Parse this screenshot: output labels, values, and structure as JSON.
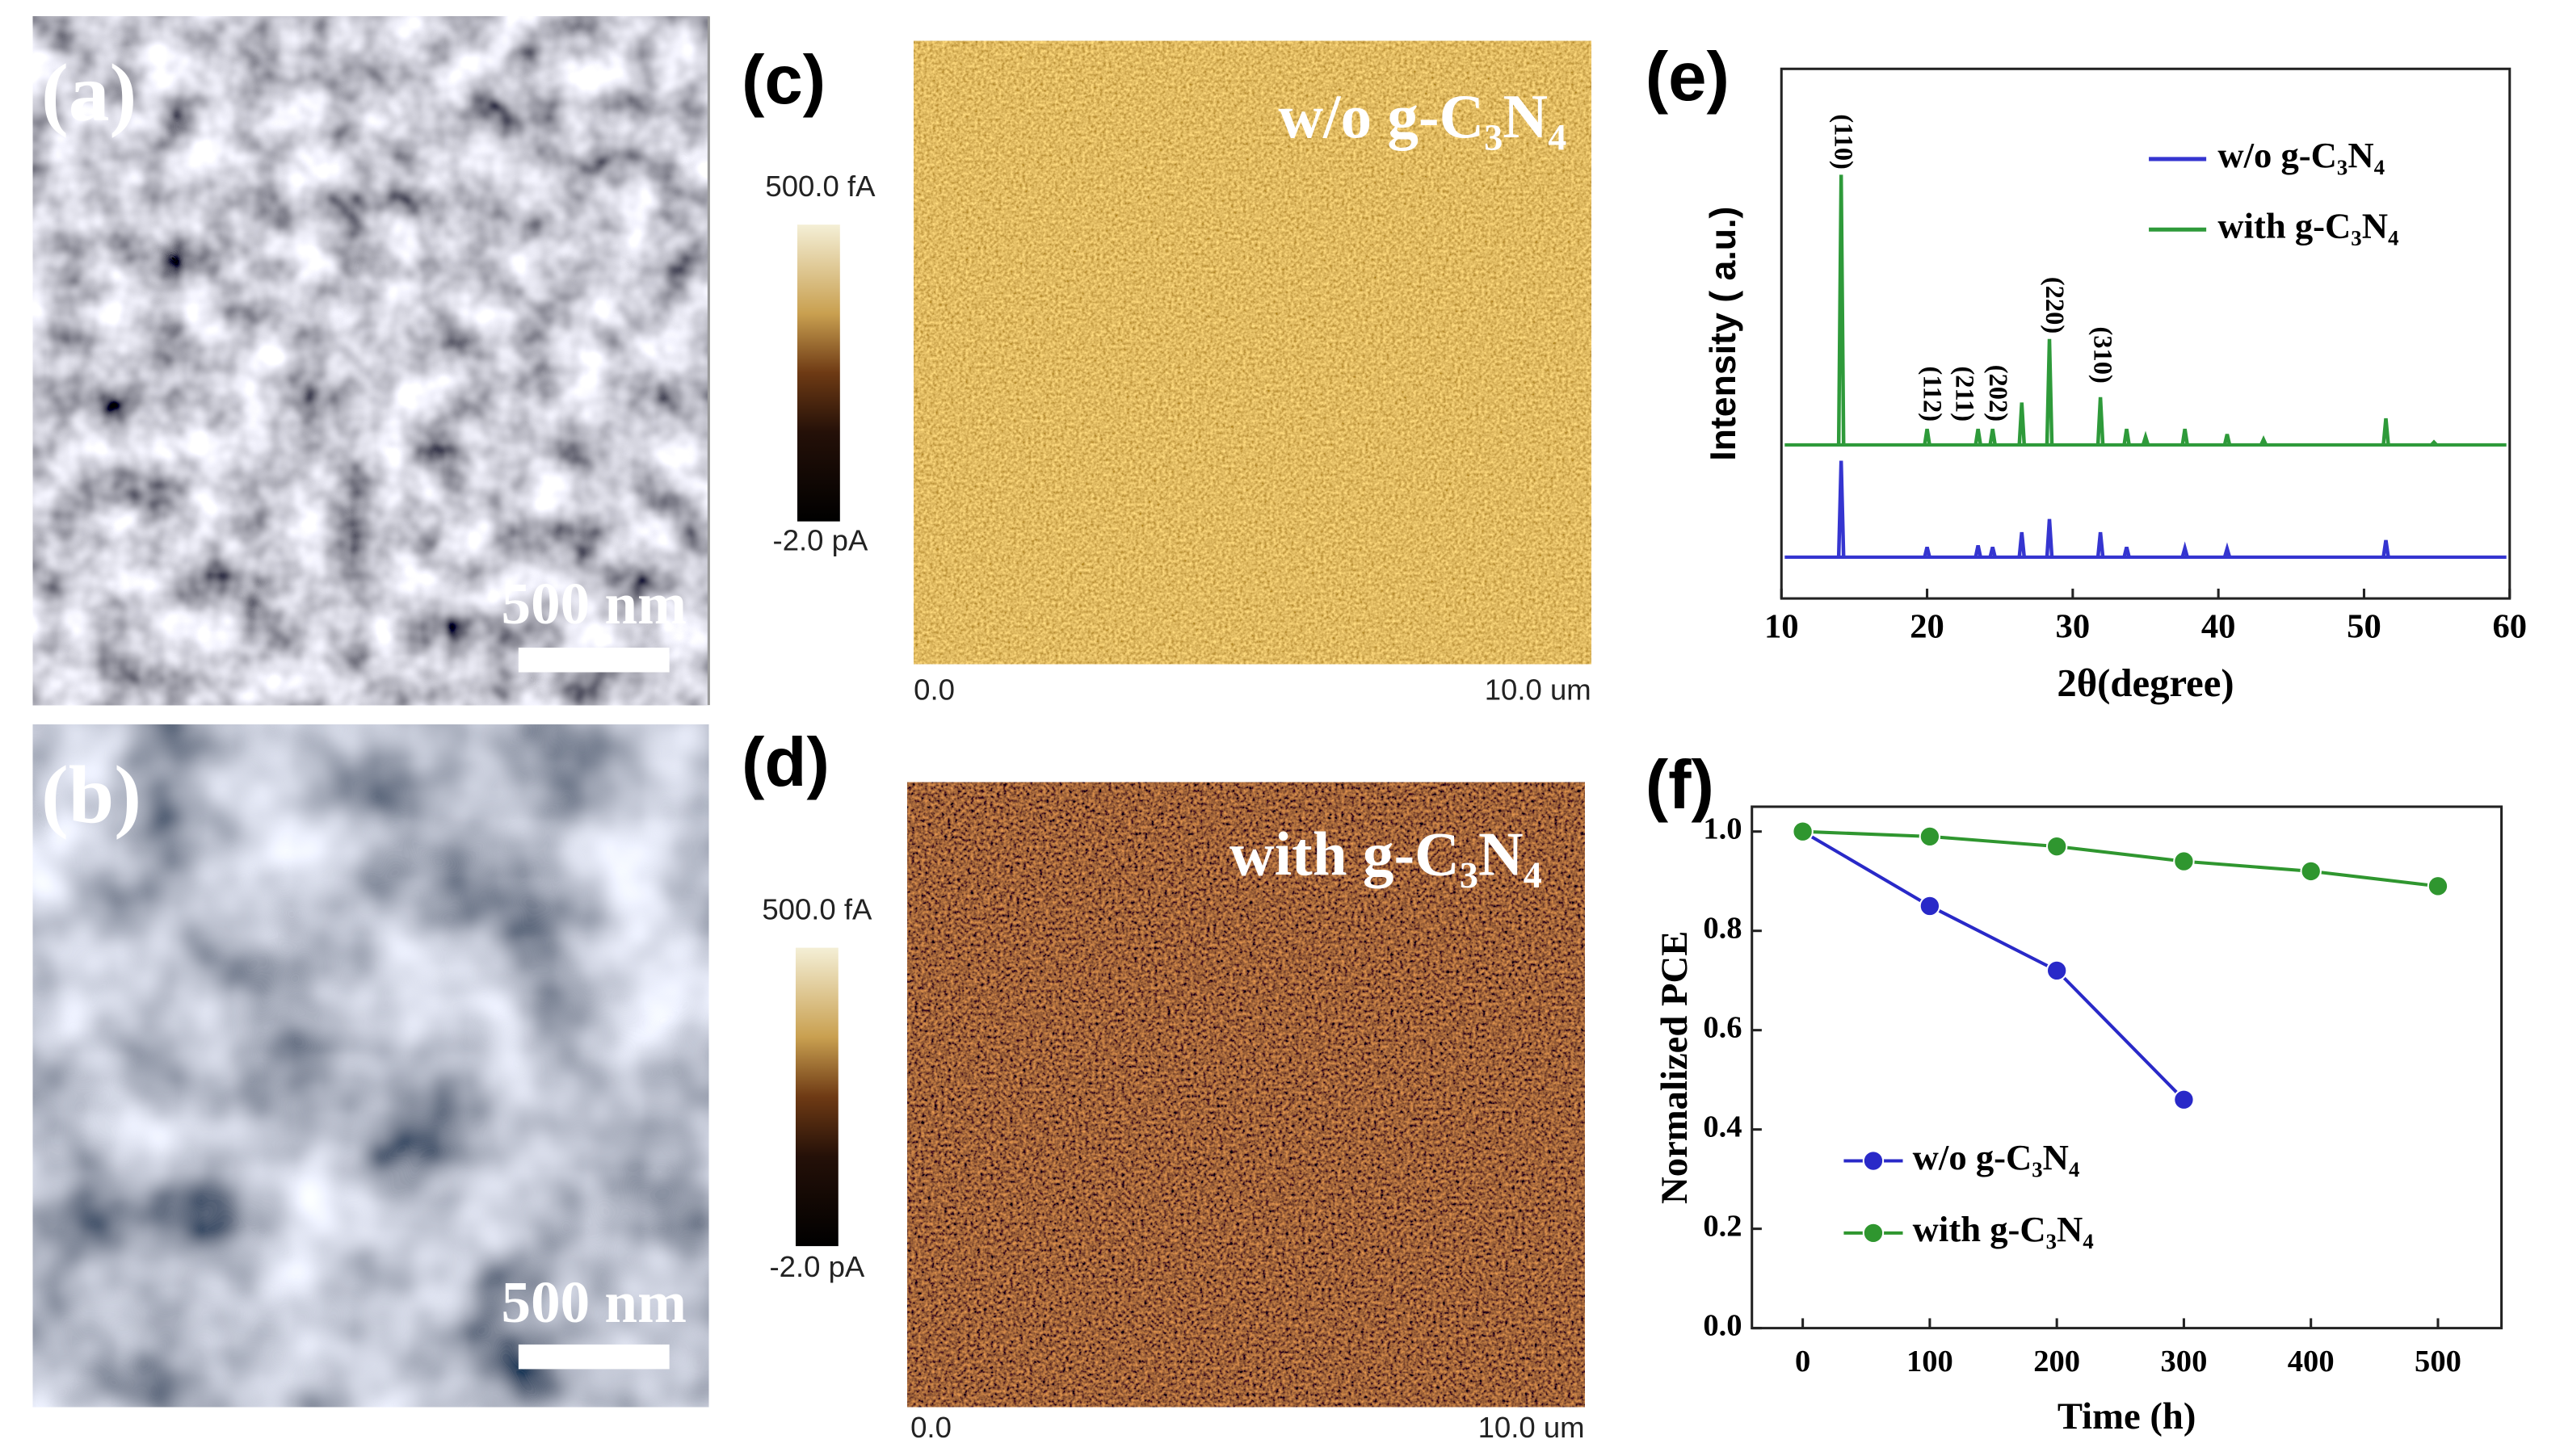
{
  "panels": {
    "a": {
      "label": "(a)",
      "scale_bar": "500 nm"
    },
    "b": {
      "label": "(b)",
      "scale_bar": "500 nm"
    },
    "c": {
      "label": "(c)",
      "sample": "w/o g-C₃N₄",
      "colorbar_max": "500.0 fA",
      "colorbar_min": "-2.0 pA",
      "x_start": "0.0",
      "x_end": "10.0 um"
    },
    "d": {
      "label": "(d)",
      "sample": "with g-C₃N₄",
      "colorbar_max": "500.0 fA",
      "colorbar_min": "-2.0 pA",
      "x_start": "0.0",
      "x_end": "10.0 um"
    },
    "e": {
      "label": "(e)"
    },
    "f": {
      "label": "(f)"
    }
  },
  "chart_data": [
    {
      "type": "spectrum",
      "xlabel": "2θ(degree)",
      "ylabel": "Intensity ( a.u.)",
      "xlim": [
        10,
        60
      ],
      "xticks": [
        10,
        20,
        30,
        40,
        50,
        60
      ],
      "ylim": [
        0,
        100
      ],
      "legend": "upper-right",
      "series": [
        {
          "name": "w/o g-C₃N₄",
          "color": "#3535d0",
          "baseline": 7.8,
          "x": [
            14.1,
            20.0,
            23.5,
            24.5,
            26.5,
            28.4,
            31.9,
            33.7,
            37.7,
            40.6,
            51.5
          ],
          "values": [
            26,
            9.7,
            10,
            9.7,
            12.5,
            15,
            12.5,
            9.7,
            9.5,
            9.4,
            11
          ]
        },
        {
          "name": "with g-C₃N₄",
          "color": "#2e9a3a",
          "baseline": 29,
          "x": [
            14.1,
            20.0,
            23.5,
            24.5,
            26.5,
            28.4,
            31.9,
            33.7,
            35.0,
            37.7,
            40.6,
            43.1,
            51.5,
            54.8
          ],
          "values": [
            80,
            32,
            32,
            32,
            37,
            49,
            38,
            32,
            30.5,
            32,
            31,
            30,
            34,
            29.5
          ]
        }
      ],
      "annotations": [
        {
          "text": "(110)",
          "x": 14.1,
          "y": 81
        },
        {
          "text": "(112)",
          "x": 20.2,
          "y": 33.4
        },
        {
          "text": "(211)",
          "x": 22.4,
          "y": 33.4
        },
        {
          "text": "(202)",
          "x": 24.7,
          "y": 33.4
        },
        {
          "text": "(220)",
          "x": 28.6,
          "y": 50
        },
        {
          "text": "(310)",
          "x": 31.9,
          "y": 40.6
        }
      ]
    },
    {
      "type": "line",
      "xlabel": "Time (h)",
      "ylabel": "Normalized PCE",
      "xlim": [
        -40,
        550
      ],
      "xticks": [
        0,
        100,
        200,
        300,
        400,
        500
      ],
      "ylim": [
        0,
        1.05
      ],
      "yticks": [
        {
          "value": 0,
          "label": "0.0"
        },
        {
          "value": 0.2,
          "label": "0.2"
        },
        {
          "value": 0.4,
          "label": "0.4"
        },
        {
          "value": 0.6,
          "label": "0.6"
        },
        {
          "value": 0.8,
          "label": "0.8"
        },
        {
          "value": 1,
          "label": "1.0"
        }
      ],
      "legend": "lower-left",
      "series": [
        {
          "name": "w/o g-C₃N₄",
          "color": "#2929c8",
          "x": [
            0,
            100,
            200,
            300
          ],
          "values": [
            1.0,
            0.85,
            0.72,
            0.46
          ]
        },
        {
          "name": "with g-C₃N₄",
          "color": "#2f962f",
          "x": [
            0,
            100,
            200,
            300,
            400,
            500
          ],
          "values": [
            1.0,
            0.99,
            0.97,
            0.94,
            0.92,
            0.89
          ]
        }
      ]
    }
  ]
}
